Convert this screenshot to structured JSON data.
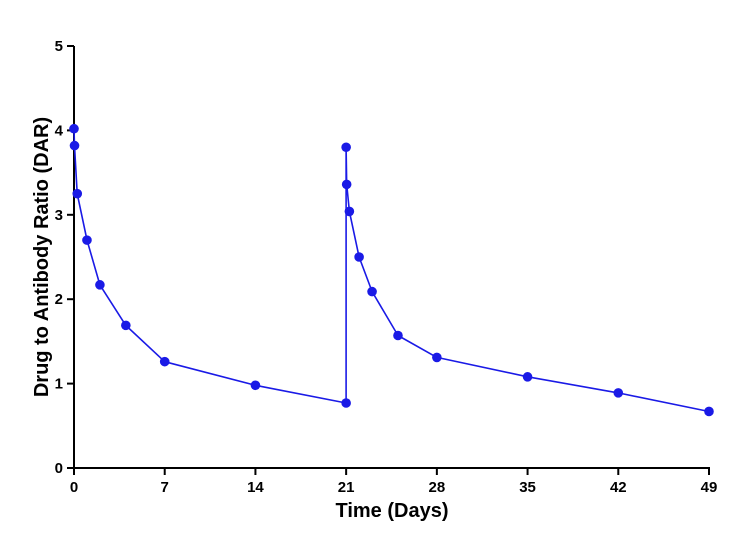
{
  "chart_data": {
    "type": "line",
    "title": "",
    "xlabel": "Time (Days)",
    "ylabel": "Drug to Antibody Ratio (DAR)",
    "xlim": [
      0,
      49
    ],
    "ylim": [
      0,
      5
    ],
    "xticks": [
      "0",
      "7",
      "14",
      "21",
      "28",
      "35",
      "42",
      "49"
    ],
    "yticks": [
      "0",
      "1",
      "2",
      "3",
      "4",
      "5"
    ],
    "grid": false,
    "legend": "none",
    "series": [
      {
        "name": "DAR",
        "color": "#1a1ae6",
        "marker": "circle",
        "x": [
          0,
          0.04,
          0.25,
          1,
          2,
          4,
          7,
          14,
          21,
          21,
          21.04,
          21.25,
          22,
          23,
          25,
          28,
          35,
          42,
          49
        ],
        "y": [
          4.02,
          3.82,
          3.25,
          2.7,
          2.17,
          1.69,
          1.26,
          0.98,
          0.77,
          3.8,
          3.36,
          3.04,
          2.5,
          2.09,
          1.57,
          1.31,
          1.08,
          0.89,
          0.67
        ]
      }
    ]
  }
}
